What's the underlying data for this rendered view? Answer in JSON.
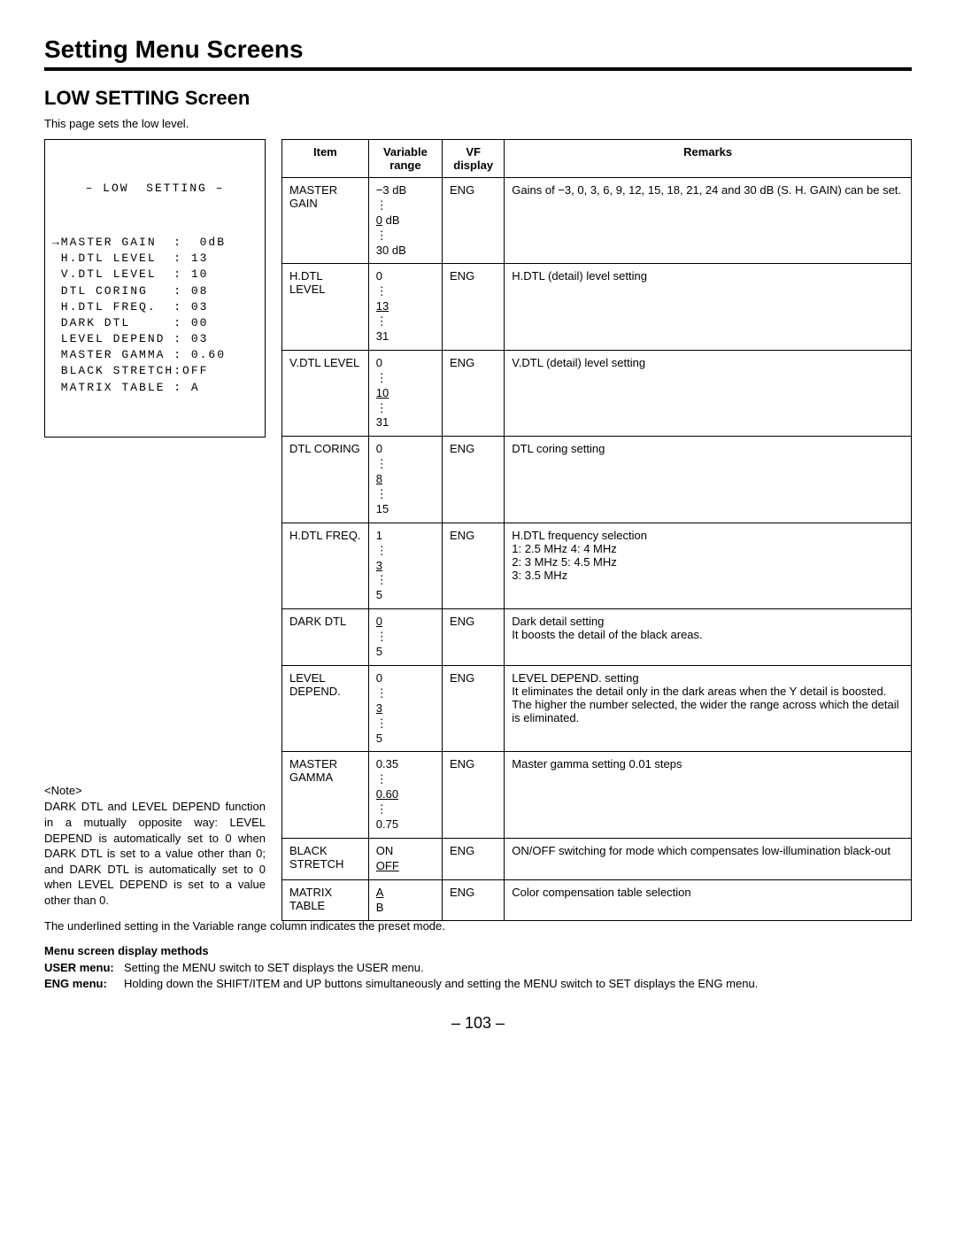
{
  "page": {
    "mainTitle": "Setting Menu Screens",
    "screenTitle": "LOW SETTING Screen",
    "intro": "This page sets the low level.",
    "pageNumber": "– 103 –"
  },
  "osd": {
    "title": "– LOW  SETTING –",
    "lines": [
      "→MASTER GAIN  :  0dB",
      " H.DTL LEVEL  : 13",
      " V.DTL LEVEL  : 10",
      " DTL CORING   : 08",
      " H.DTL FREQ.  : 03",
      " DARK DTL     : 00",
      " LEVEL DEPEND : 03",
      " MASTER GAMMA : 0.60",
      " BLACK STRETCH:OFF",
      " MATRIX TABLE : A"
    ]
  },
  "note": {
    "head": "<Note>",
    "body": "DARK DTL and LEVEL DEPEND function in a mutually opposite way: LEVEL DEPEND is automatically set to 0 when DARK DTL is set to a value other than 0; and DARK DTL is automatically set to 0 when LEVEL DEPEND is set to a value other than 0."
  },
  "table": {
    "headers": [
      "Item",
      "Variable range",
      "VF display",
      "Remarks"
    ],
    "rows": [
      {
        "item": "MASTER GAIN",
        "rangeParts": [
          "−3 dB",
          "⋮",
          "_0_ dB",
          "⋮",
          "30 dB"
        ],
        "vf": "ENG",
        "remarks": "Gains of −3, 0, 3, 6, 9, 12, 15, 18, 21, 24 and 30 dB (S. H. GAIN) can be set."
      },
      {
        "item": "H.DTL LEVEL",
        "rangeParts": [
          "0",
          "⋮",
          "_13_",
          "⋮",
          "31"
        ],
        "vf": "ENG",
        "remarks": "H.DTL (detail) level setting"
      },
      {
        "item": "V.DTL LEVEL",
        "rangeParts": [
          "0",
          "⋮",
          "_10_",
          "⋮",
          "31"
        ],
        "vf": "ENG",
        "remarks": "V.DTL (detail) level setting"
      },
      {
        "item": "DTL CORING",
        "rangeParts": [
          "0",
          "⋮",
          "_8_",
          "⋮",
          "15"
        ],
        "vf": "ENG",
        "remarks": "DTL coring setting"
      },
      {
        "item": "H.DTL FREQ.",
        "rangeParts": [
          "1",
          "⋮",
          "_3_",
          "⋮",
          "5"
        ],
        "vf": "ENG",
        "remarks": "H.DTL frequency selection\n1: 2.5 MHz      4: 4 MHz\n2: 3 MHz         5: 4.5 MHz\n3: 3.5 MHz"
      },
      {
        "item": "DARK DTL",
        "rangeParts": [
          "_0_",
          "⋮",
          "5"
        ],
        "vf": "ENG",
        "remarks": "Dark detail setting\nIt boosts the detail of the black areas."
      },
      {
        "item": "LEVEL DEPEND.",
        "rangeParts": [
          "0",
          "⋮",
          "_3_",
          "⋮",
          "5"
        ],
        "vf": "ENG",
        "remarks": "LEVEL DEPEND. setting\nIt eliminates the detail only in the dark areas when the Y detail is boosted. The higher the number selected, the wider the range across which the detail is eliminated."
      },
      {
        "item": "MASTER GAMMA",
        "rangeParts": [
          "0.35",
          "⋮",
          "_0.60_",
          "⋮",
          "0.75"
        ],
        "vf": "ENG",
        "remarks": "Master gamma setting 0.01 steps"
      },
      {
        "item": "BLACK STRETCH",
        "rangeParts": [
          "ON",
          "_OFF_"
        ],
        "vf": "ENG",
        "remarks": "ON/OFF switching for mode which compensates low-illumination black-out"
      },
      {
        "item": "MATRIX TABLE",
        "rangeParts": [
          "_A_",
          "B"
        ],
        "vf": "ENG",
        "remarks": "Color compensation table selection"
      }
    ]
  },
  "footer": {
    "presetNote": "The underlined setting in the Variable range column indicates the preset mode.",
    "methodsHead": "Menu screen display methods",
    "userLabel": "USER menu:",
    "userText": "Setting the MENU switch to SET displays the USER menu.",
    "engLabel": "ENG menu:",
    "engText": "Holding down the SHIFT/ITEM and UP buttons simultaneously and setting the MENU switch to SET displays the ENG menu."
  }
}
